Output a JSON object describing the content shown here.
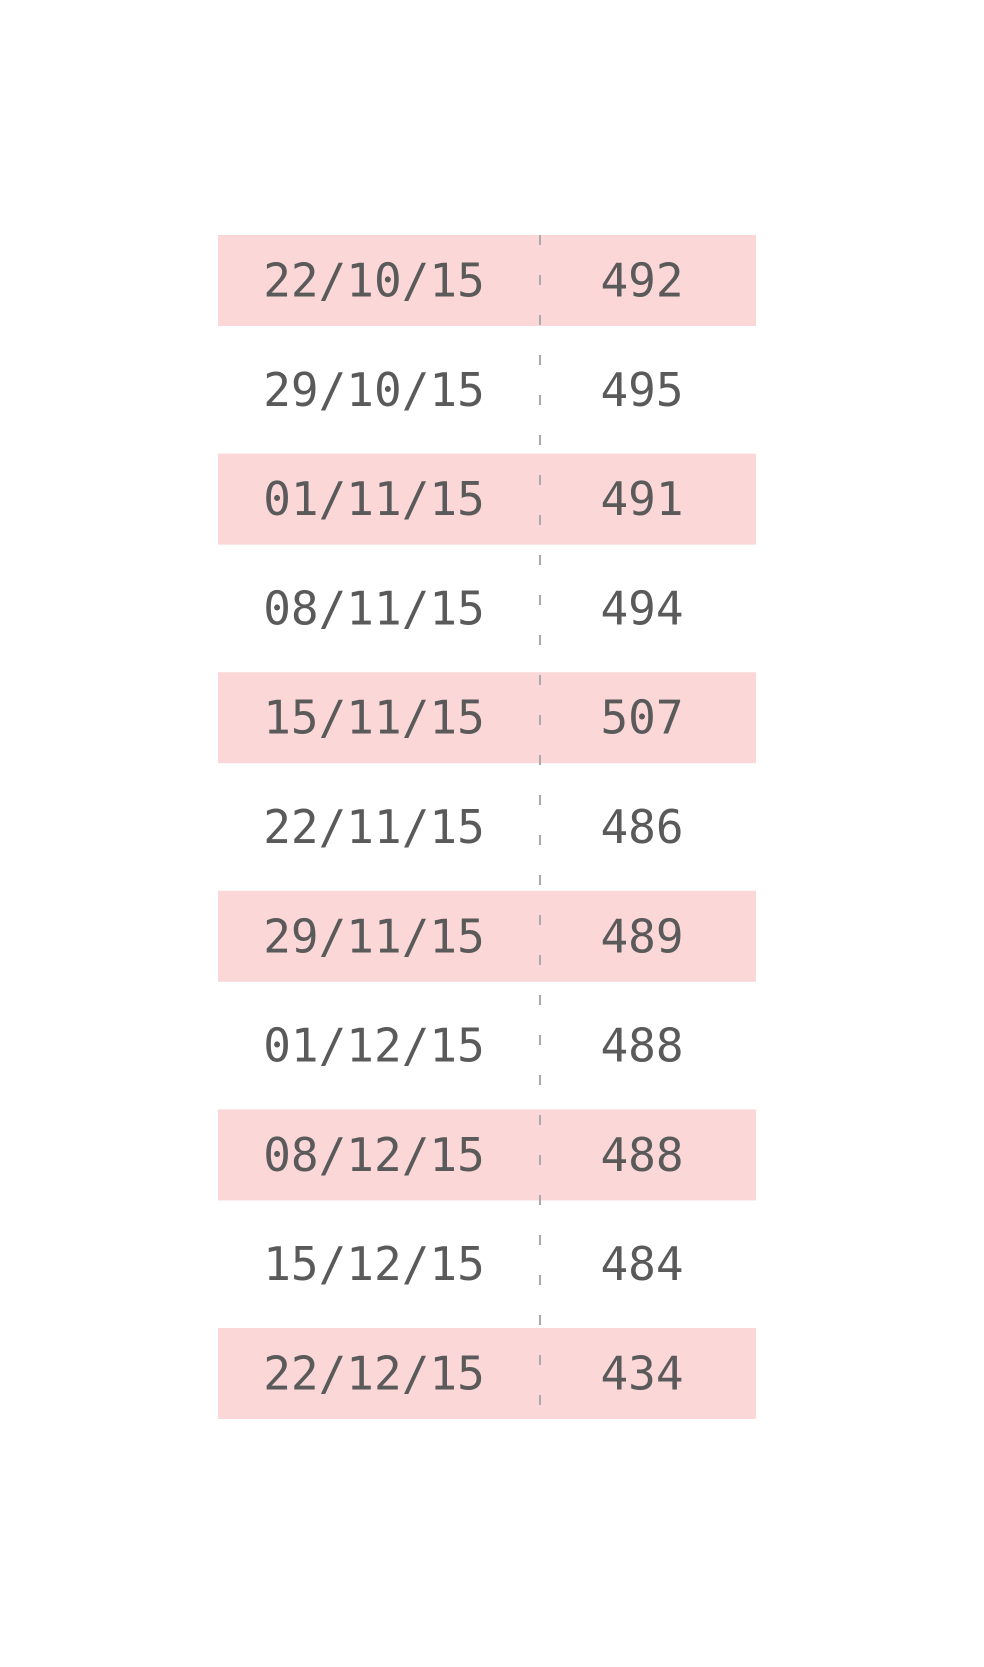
{
  "colors": {
    "band_fill": "#fbd7d8",
    "text": "#5a5a5a",
    "divider": "#aaaaaa",
    "background": "#ffffff"
  },
  "chart_data": {
    "type": "table",
    "columns": [
      "date",
      "value"
    ],
    "row_banding": "alternating, odd rows shaded",
    "column_divider": "dashed",
    "rows": [
      {
        "date": "22/10/15",
        "value": "492"
      },
      {
        "date": "29/10/15",
        "value": "495"
      },
      {
        "date": "01/11/15",
        "value": "491"
      },
      {
        "date": "08/11/15",
        "value": "494"
      },
      {
        "date": "15/11/15",
        "value": "507"
      },
      {
        "date": "22/11/15",
        "value": "486"
      },
      {
        "date": "29/11/15",
        "value": "489"
      },
      {
        "date": "01/12/15",
        "value": "488"
      },
      {
        "date": "08/12/15",
        "value": "488"
      },
      {
        "date": "15/12/15",
        "value": "484"
      },
      {
        "date": "22/12/15",
        "value": "434"
      }
    ]
  }
}
